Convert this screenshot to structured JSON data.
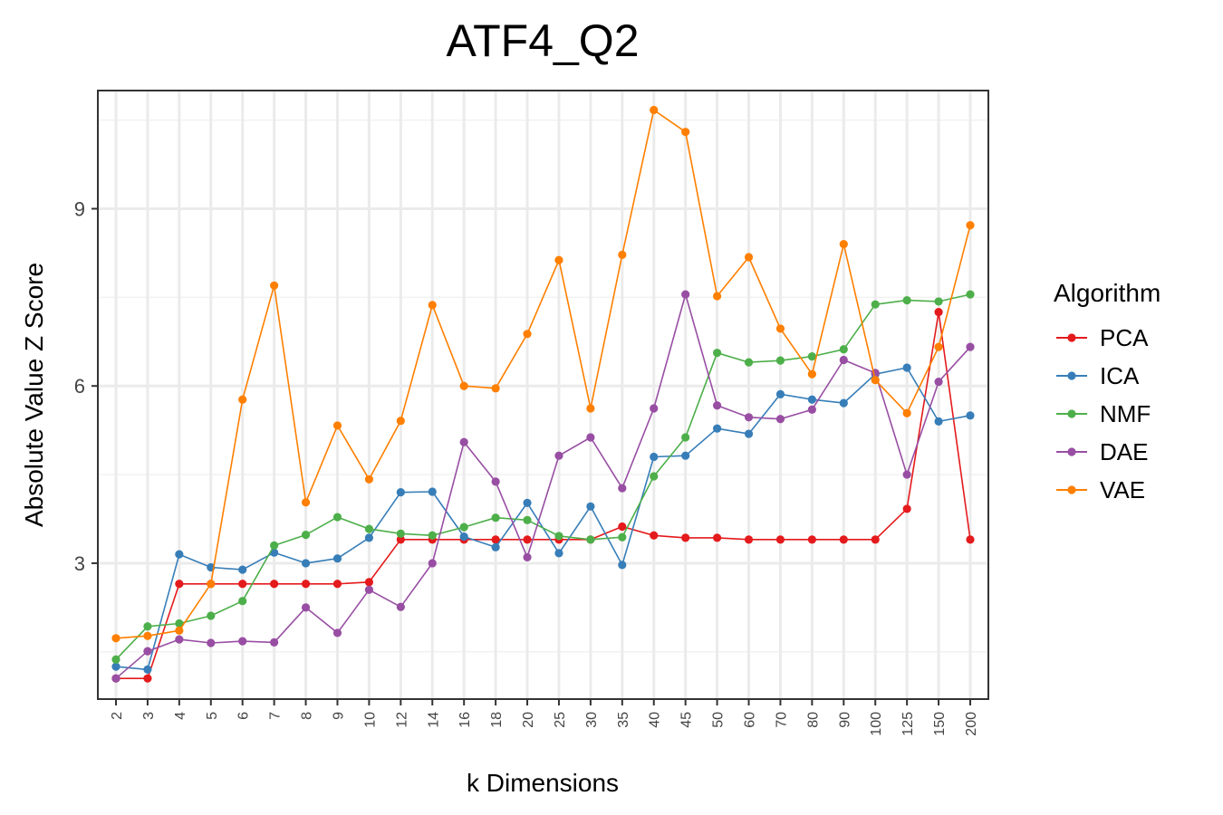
{
  "chart_data": {
    "type": "line",
    "title": "ATF4_Q2",
    "xlabel": "k Dimensions",
    "ylabel": "Absolute Value Z Score",
    "categories": [
      "2",
      "3",
      "4",
      "5",
      "6",
      "7",
      "8",
      "9",
      "10",
      "12",
      "14",
      "16",
      "18",
      "20",
      "25",
      "30",
      "35",
      "40",
      "45",
      "50",
      "60",
      "70",
      "80",
      "90",
      "100",
      "125",
      "150",
      "200"
    ],
    "yticks": [
      3,
      6,
      9
    ],
    "ylim": [
      0.7,
      11.0
    ],
    "grid": true,
    "legend": {
      "title": "Algorithm",
      "position": "right"
    },
    "series": [
      {
        "name": "PCA",
        "color": "#e41a1c",
        "values": [
          1.05,
          1.05,
          2.65,
          2.65,
          2.65,
          2.65,
          2.65,
          2.65,
          2.68,
          3.4,
          3.4,
          3.4,
          3.4,
          3.4,
          3.4,
          3.4,
          3.62,
          3.47,
          3.43,
          3.43,
          3.4,
          3.4,
          3.4,
          3.4,
          3.4,
          3.92,
          7.25,
          3.4
        ]
      },
      {
        "name": "ICA",
        "color": "#377eb8",
        "values": [
          1.25,
          1.2,
          3.15,
          2.93,
          2.89,
          3.18,
          3.0,
          3.08,
          3.43,
          4.2,
          4.21,
          3.45,
          3.27,
          4.02,
          3.17,
          3.96,
          2.97,
          4.8,
          4.82,
          5.28,
          5.19,
          5.86,
          5.77,
          5.71,
          6.2,
          6.31,
          5.4,
          5.5
        ]
      },
      {
        "name": "NMF",
        "color": "#4daf4a",
        "values": [
          1.37,
          1.93,
          1.98,
          2.11,
          2.36,
          3.3,
          3.48,
          3.78,
          3.58,
          3.5,
          3.47,
          3.61,
          3.77,
          3.73,
          3.46,
          3.4,
          3.44,
          4.47,
          5.13,
          6.56,
          6.4,
          6.43,
          6.5,
          6.62,
          7.38,
          7.45,
          7.43,
          7.55
        ]
      },
      {
        "name": "DAE",
        "color": "#984ea3",
        "values": [
          1.05,
          1.51,
          1.71,
          1.65,
          1.68,
          1.66,
          2.25,
          1.82,
          2.55,
          2.26,
          3.0,
          5.05,
          4.38,
          3.1,
          4.82,
          5.13,
          4.27,
          5.62,
          7.55,
          5.67,
          5.47,
          5.44,
          5.6,
          6.44,
          6.22,
          4.5,
          6.07,
          6.66
        ]
      },
      {
        "name": "VAE",
        "color": "#ff7f00",
        "values": [
          1.73,
          1.77,
          1.86,
          2.65,
          5.77,
          7.7,
          4.03,
          5.33,
          4.42,
          5.41,
          7.37,
          6.0,
          5.96,
          6.88,
          8.13,
          5.62,
          8.22,
          10.67,
          10.3,
          7.52,
          8.18,
          6.97,
          6.2,
          8.4,
          6.1,
          5.54,
          6.66,
          8.72
        ]
      }
    ]
  }
}
